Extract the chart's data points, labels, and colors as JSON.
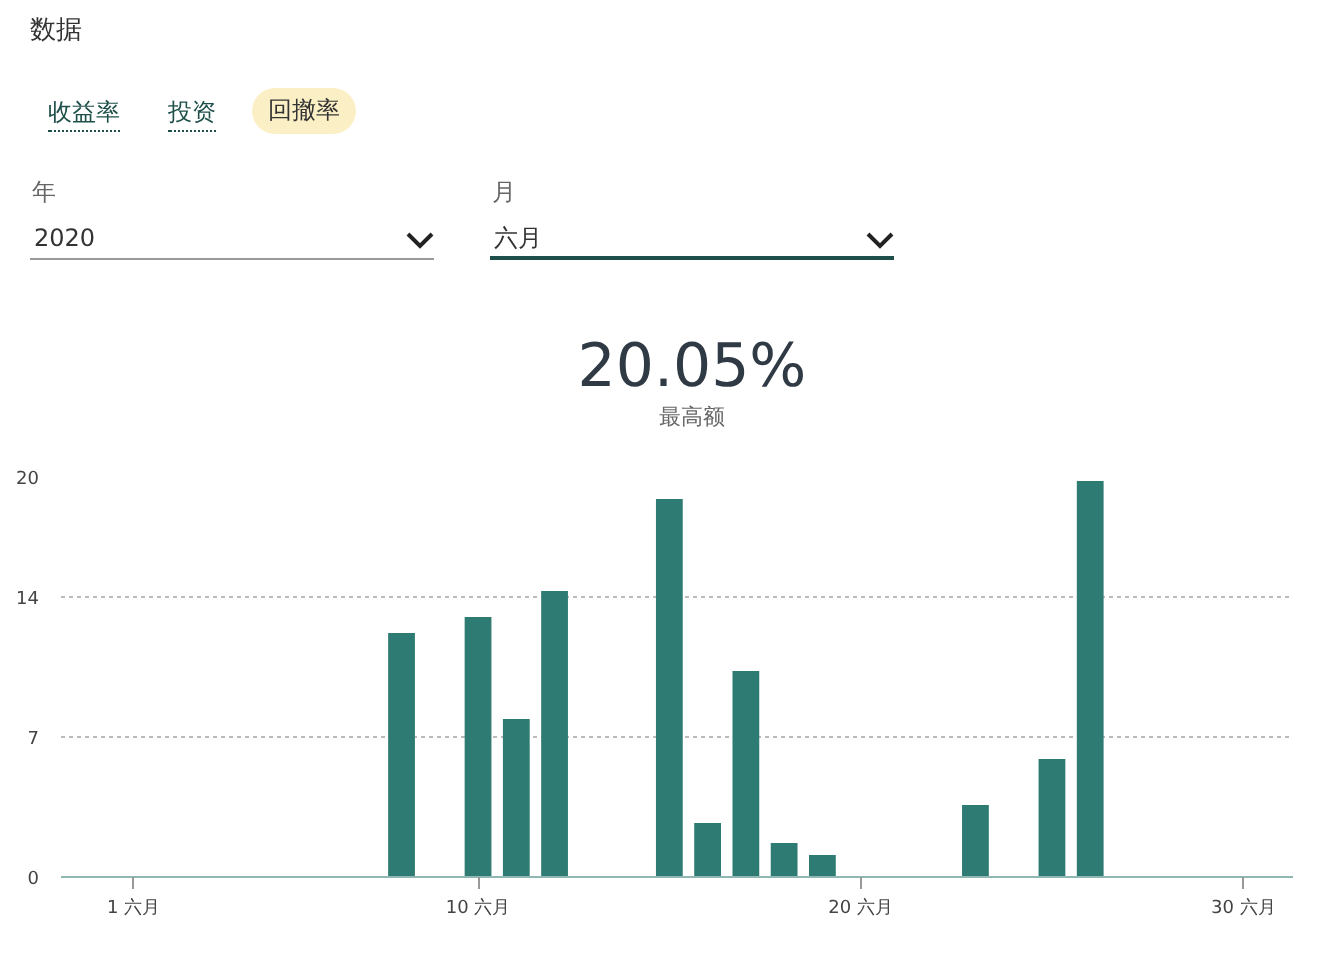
{
  "chart_data": {
    "type": "bar",
    "title": "20.05%",
    "subtitle": "最高额",
    "annotations": [
      "数据",
      "收益率",
      "投资",
      "回撤率",
      "年",
      "2020",
      "月",
      "六月"
    ],
    "x": [
      8,
      10,
      11,
      12,
      15,
      16,
      17,
      18,
      19,
      23,
      25,
      26
    ],
    "values": [
      12.2,
      13.0,
      7.9,
      14.3,
      18.9,
      2.7,
      10.3,
      1.7,
      1.1,
      3.6,
      5.9,
      19.8
    ],
    "color": "#2e7b73",
    "xlim": [
      -0.9,
      31.3
    ],
    "xticks": [
      {
        "value": 1,
        "label": "1 六月"
      },
      {
        "value": 10,
        "label": "10 六月"
      },
      {
        "value": 20,
        "label": "20 六月"
      },
      {
        "value": 30,
        "label": "30 六月"
      }
    ],
    "ylim": [
      0,
      20
    ],
    "yticks": [
      0,
      7,
      14,
      20
    ],
    "grid": "y"
  }
}
